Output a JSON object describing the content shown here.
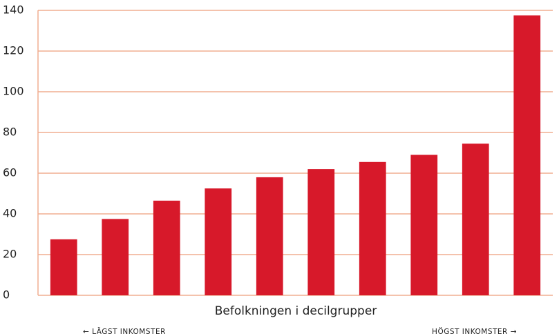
{
  "chart_data": {
    "type": "bar",
    "x_label": "Befolkningen i decilgrupper",
    "annotations": [
      "← LÄGST INKOMSTER",
      "HÖGST INKOMSTER →"
    ],
    "categories": [
      null,
      null,
      null,
      null,
      null,
      null,
      null,
      null,
      null,
      null
    ],
    "values": [
      27.5,
      37.5,
      46.5,
      52.5,
      58,
      62,
      65.5,
      69,
      74.5,
      137.5
    ],
    "color": "#d7192a",
    "grid_color": "#f0ad90",
    "ylim": [
      0,
      140
    ],
    "yticks": [
      0,
      20,
      40,
      60,
      80,
      100,
      120,
      140
    ],
    "grid": true
  }
}
